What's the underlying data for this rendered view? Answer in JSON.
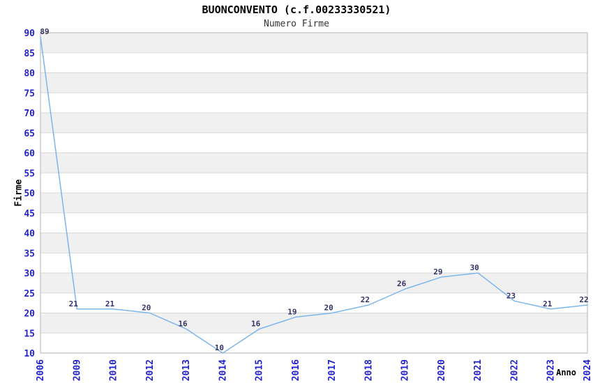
{
  "title": "BUONCONVENTO (c.f.00233330521)",
  "subtitle": "Numero Firme",
  "chart_data": {
    "type": "line",
    "title": "BUONCONVENTO (c.f.00233330521)",
    "subtitle": "Numero Firme",
    "xlabel": "Anno",
    "ylabel": "Firme",
    "categories": [
      "2006",
      "2009",
      "2010",
      "2012",
      "2013",
      "2014",
      "2015",
      "2016",
      "2017",
      "2018",
      "2019",
      "2020",
      "2021",
      "2022",
      "2023",
      "2024"
    ],
    "values": [
      89,
      21,
      21,
      20,
      16,
      10,
      16,
      19,
      20,
      22,
      26,
      29,
      30,
      23,
      21,
      22
    ],
    "ylim": [
      10,
      90
    ],
    "ytick_step": 5,
    "yticks": [
      10,
      15,
      20,
      25,
      30,
      35,
      40,
      45,
      50,
      55,
      60,
      65,
      70,
      75,
      80,
      85,
      90
    ],
    "grid": "horizontal-alternating-bands",
    "legend": "none",
    "colors": {
      "line": "#7cb5ec",
      "tick_label": "#2222cc",
      "data_label": "#333366",
      "band_gray": "#f0f0f0",
      "grid_line": "#d9d9d9",
      "plot_border": "#b3b3b3",
      "title": "#000000",
      "subtitle": "#333333"
    }
  }
}
